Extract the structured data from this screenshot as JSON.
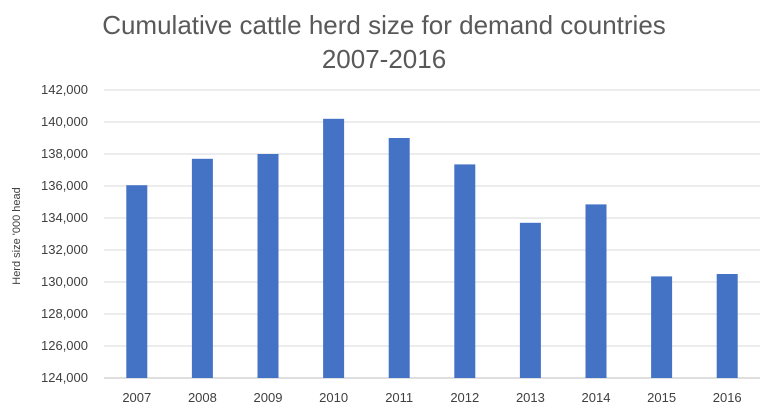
{
  "chart_data": {
    "type": "bar",
    "title_lines": [
      "Cumulative cattle herd size for demand countries",
      "2007-2016"
    ],
    "xlabel": "",
    "ylabel": "Herd size '000 head",
    "categories": [
      "2007",
      "2008",
      "2009",
      "2010",
      "2011",
      "2012",
      "2013",
      "2014",
      "2015",
      "2016"
    ],
    "values": [
      136050,
      137700,
      138000,
      140200,
      139000,
      137350,
      133700,
      134850,
      130350,
      130500
    ],
    "ylim": [
      124000,
      142000
    ],
    "yticks": [
      124000,
      126000,
      128000,
      130000,
      132000,
      134000,
      136000,
      138000,
      140000,
      142000
    ],
    "ytick_labels": [
      "124,000",
      "126,000",
      "128,000",
      "130,000",
      "132,000",
      "134,000",
      "136,000",
      "138,000",
      "140,000",
      "142,000"
    ],
    "grid": true,
    "legend": "none",
    "colors": {
      "bar": "#4472C4",
      "grid": "#D9D9D9",
      "axis": "#BFBFBF",
      "text": "#595959",
      "label": "#404040"
    }
  }
}
